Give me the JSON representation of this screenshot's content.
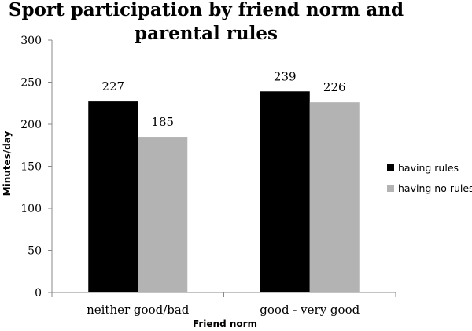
{
  "chart_data": {
    "type": "bar",
    "title_lines": [
      "Sport participation by friend norm and",
      "parental rules"
    ],
    "xlabel": "Friend norm",
    "ylabel": "Minutes/day",
    "ylim": [
      0,
      300
    ],
    "yticks": [
      0,
      50,
      100,
      150,
      200,
      250,
      300
    ],
    "categories": [
      "neither good/bad",
      "good - very good"
    ],
    "series": [
      {
        "name": "having rules",
        "values": [
          227,
          239
        ],
        "color": "#000000"
      },
      {
        "name": "having no rules",
        "values": [
          185,
          226
        ],
        "color": "#b3b3b3"
      }
    ],
    "legend_position": "right",
    "grid": false
  }
}
